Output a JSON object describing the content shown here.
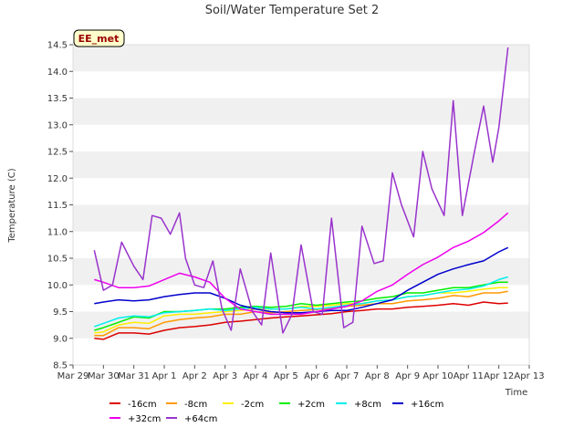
{
  "chart_data": {
    "type": "line",
    "title": "Soil/Water Temperature Set 2",
    "xlabel": "Time",
    "ylabel": "Temperature (C)",
    "annotation": "EE_met",
    "ylim": [
      8.5,
      14.5
    ],
    "y_ticks": [
      8.5,
      9.0,
      9.5,
      10.0,
      10.5,
      11.0,
      11.5,
      12.0,
      12.5,
      13.0,
      13.5,
      14.0,
      14.5
    ],
    "y_tick_labels": [
      "8.5",
      "9.0",
      "9.5",
      "10.0",
      "10.5",
      "11.0",
      "11.5",
      "12.0",
      "12.5",
      "13.0",
      "13.5",
      "14.0",
      "14.5"
    ],
    "xlim": [
      0,
      15
    ],
    "x_ticks": [
      0,
      1,
      2,
      3,
      4,
      5,
      6,
      7,
      8,
      9,
      10,
      11,
      12,
      13,
      14,
      15
    ],
    "x_tick_labels": [
      "Mar 29",
      "Mar 30",
      "Mar 31",
      "Apr 1",
      "Apr 2",
      "Apr 3",
      "Apr 4",
      "Apr 5",
      "Apr 6",
      "Apr 7",
      "Apr 8",
      "Apr 9",
      "Apr 10",
      "Apr 11",
      "Apr 12",
      "Apr 13"
    ],
    "grid": "horizontal bands",
    "legend_position": "bottom",
    "series": [
      {
        "name": "-16cm",
        "color": "#dd0000",
        "x": [
          0.7,
          1.0,
          1.5,
          2.0,
          2.5,
          3.0,
          3.5,
          4.0,
          4.5,
          5.0,
          5.5,
          6.0,
          6.5,
          7.0,
          7.5,
          8.0,
          8.5,
          9.0,
          9.5,
          10.0,
          10.5,
          11.0,
          11.5,
          12.0,
          12.5,
          13.0,
          13.5,
          14.0,
          14.3
        ],
        "y": [
          9.0,
          8.98,
          9.1,
          9.1,
          9.08,
          9.15,
          9.2,
          9.22,
          9.25,
          9.3,
          9.32,
          9.35,
          9.38,
          9.4,
          9.42,
          9.44,
          9.46,
          9.5,
          9.52,
          9.55,
          9.55,
          9.58,
          9.6,
          9.62,
          9.65,
          9.62,
          9.68,
          9.65,
          9.66
        ]
      },
      {
        "name": "-8cm",
        "color": "#ff9900",
        "x": [
          0.7,
          1.0,
          1.5,
          2.0,
          2.5,
          3.0,
          3.5,
          4.0,
          4.5,
          5.0,
          5.5,
          6.0,
          6.5,
          7.0,
          7.5,
          8.0,
          8.5,
          9.0,
          9.5,
          10.0,
          10.5,
          11.0,
          11.5,
          12.0,
          12.5,
          13.0,
          13.5,
          14.0,
          14.3
        ],
        "y": [
          9.05,
          9.05,
          9.2,
          9.2,
          9.18,
          9.3,
          9.35,
          9.38,
          9.4,
          9.45,
          9.45,
          9.5,
          9.48,
          9.5,
          9.52,
          9.54,
          9.56,
          9.6,
          9.62,
          9.65,
          9.65,
          9.7,
          9.72,
          9.75,
          9.8,
          9.78,
          9.85,
          9.85,
          9.88
        ]
      },
      {
        "name": "-2cm",
        "color": "#ffee00",
        "x": [
          0.7,
          1.0,
          1.5,
          2.0,
          2.5,
          3.0,
          3.5,
          4.0,
          4.5,
          5.0,
          5.5,
          6.0,
          6.5,
          7.0,
          7.5,
          8.0,
          8.5,
          9.0,
          9.5,
          10.0,
          10.5,
          11.0,
          11.5,
          12.0,
          12.5,
          13.0,
          13.5,
          14.0,
          14.3
        ],
        "y": [
          9.1,
          9.12,
          9.25,
          9.3,
          9.28,
          9.42,
          9.45,
          9.45,
          9.48,
          9.5,
          9.52,
          9.55,
          9.55,
          9.55,
          9.6,
          9.6,
          9.62,
          9.65,
          9.65,
          9.7,
          9.72,
          9.78,
          9.8,
          9.85,
          9.85,
          9.88,
          9.92,
          9.95,
          9.95
        ]
      },
      {
        "name": "+2cm",
        "color": "#00ee00",
        "x": [
          0.7,
          1.0,
          1.5,
          2.0,
          2.5,
          3.0,
          3.5,
          4.0,
          4.5,
          5.0,
          5.5,
          6.0,
          6.5,
          7.0,
          7.5,
          8.0,
          8.5,
          9.0,
          9.5,
          10.0,
          10.5,
          11.0,
          11.5,
          12.0,
          12.5,
          13.0,
          13.5,
          14.0,
          14.3
        ],
        "y": [
          9.15,
          9.2,
          9.3,
          9.4,
          9.38,
          9.5,
          9.5,
          9.52,
          9.55,
          9.55,
          9.58,
          9.6,
          9.58,
          9.6,
          9.65,
          9.62,
          9.65,
          9.68,
          9.7,
          9.75,
          9.78,
          9.85,
          9.85,
          9.9,
          9.95,
          9.95,
          10.0,
          10.05,
          10.05
        ]
      },
      {
        "name": "+8cm",
        "color": "#00eeee",
        "x": [
          0.7,
          1.0,
          1.5,
          2.0,
          2.5,
          3.0,
          3.5,
          4.0,
          4.5,
          5.0,
          5.5,
          6.0,
          6.5,
          7.0,
          7.5,
          8.0,
          8.5,
          9.0,
          9.5,
          10.0,
          10.5,
          11.0,
          11.5,
          12.0,
          12.5,
          13.0,
          13.5,
          14.0,
          14.3
        ],
        "y": [
          9.22,
          9.28,
          9.38,
          9.42,
          9.4,
          9.48,
          9.5,
          9.52,
          9.55,
          9.52,
          9.55,
          9.58,
          9.55,
          9.55,
          9.58,
          9.55,
          9.58,
          9.62,
          9.65,
          9.7,
          9.72,
          9.78,
          9.8,
          9.85,
          9.9,
          9.92,
          9.98,
          10.1,
          10.15
        ]
      },
      {
        "name": "+16cm",
        "color": "#0000cc",
        "x": [
          0.7,
          1.0,
          1.5,
          2.0,
          2.5,
          3.0,
          3.5,
          4.0,
          4.5,
          5.0,
          5.5,
          6.0,
          6.5,
          7.0,
          7.5,
          8.0,
          8.5,
          9.0,
          9.5,
          10.0,
          10.5,
          11.0,
          11.5,
          12.0,
          12.5,
          13.0,
          13.5,
          14.0,
          14.3
        ],
        "y": [
          9.65,
          9.68,
          9.72,
          9.7,
          9.72,
          9.78,
          9.82,
          9.85,
          9.85,
          9.75,
          9.62,
          9.55,
          9.5,
          9.48,
          9.48,
          9.5,
          9.52,
          9.52,
          9.58,
          9.65,
          9.72,
          9.9,
          10.05,
          10.2,
          10.3,
          10.38,
          10.45,
          10.62,
          10.7
        ]
      },
      {
        "name": "+32cm",
        "color": "#ee00ee",
        "x": [
          0.7,
          1.0,
          1.5,
          2.0,
          2.5,
          3.0,
          3.5,
          4.0,
          4.5,
          5.0,
          5.5,
          6.0,
          6.5,
          7.0,
          7.5,
          8.0,
          8.5,
          9.0,
          9.5,
          10.0,
          10.5,
          11.0,
          11.5,
          12.0,
          12.5,
          13.0,
          13.5,
          14.0,
          14.3
        ],
        "y": [
          10.1,
          10.05,
          9.95,
          9.95,
          9.98,
          10.1,
          10.22,
          10.15,
          10.05,
          9.75,
          9.55,
          9.5,
          9.45,
          9.45,
          9.45,
          9.5,
          9.55,
          9.6,
          9.7,
          9.88,
          10.0,
          10.2,
          10.38,
          10.52,
          10.7,
          10.82,
          10.98,
          11.2,
          11.35
        ]
      },
      {
        "name": "+64cm",
        "color": "#9933cc",
        "x": [
          0.7,
          1.0,
          1.3,
          1.6,
          2.0,
          2.3,
          2.6,
          2.9,
          3.2,
          3.5,
          3.7,
          4.0,
          4.3,
          4.6,
          4.9,
          5.2,
          5.5,
          5.9,
          6.2,
          6.5,
          6.9,
          7.2,
          7.5,
          7.9,
          8.2,
          8.5,
          8.9,
          9.2,
          9.5,
          9.9,
          10.2,
          10.5,
          10.8,
          11.2,
          11.5,
          11.8,
          12.2,
          12.5,
          12.8,
          13.2,
          13.5,
          13.8,
          14.0,
          14.3
        ],
        "y": [
          10.65,
          9.9,
          10.0,
          10.8,
          10.35,
          10.1,
          11.3,
          11.25,
          10.95,
          11.35,
          10.5,
          10.0,
          9.95,
          10.45,
          9.55,
          9.15,
          10.3,
          9.5,
          9.25,
          10.6,
          9.1,
          9.45,
          10.75,
          9.5,
          9.45,
          11.25,
          9.2,
          9.3,
          11.1,
          10.4,
          10.45,
          12.1,
          11.5,
          10.9,
          12.5,
          11.8,
          11.3,
          13.45,
          11.3,
          12.5,
          13.35,
          12.3,
          12.95,
          14.45
        ]
      }
    ]
  }
}
